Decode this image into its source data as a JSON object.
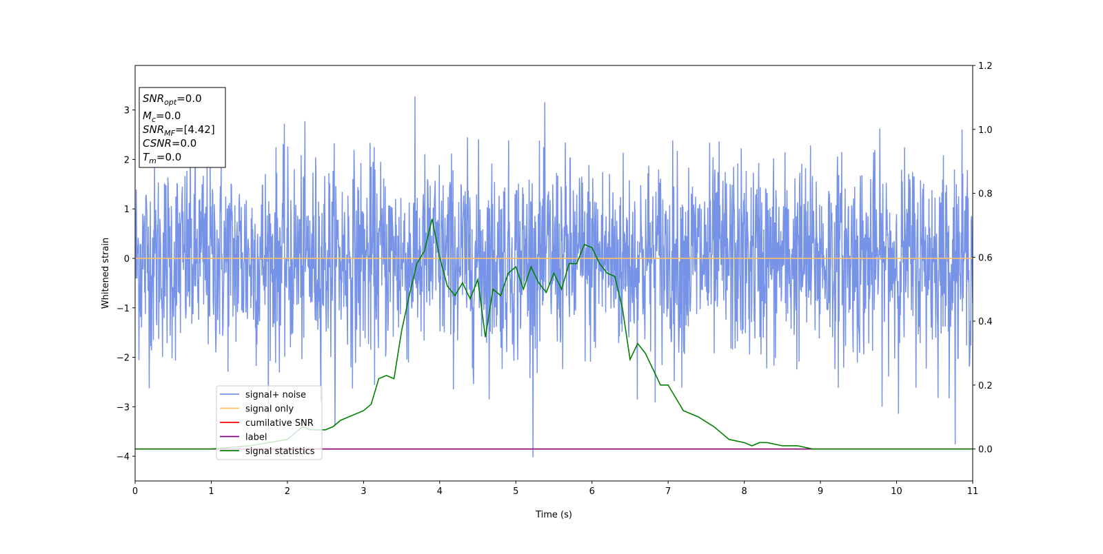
{
  "chart_data": {
    "type": "line",
    "xlabel": "Time (s)",
    "ylabel": "Whitened strain",
    "xlim": [
      0,
      11
    ],
    "ylim_left": [
      -4.5,
      3.9
    ],
    "ylim_right": [
      -0.1,
      1.2
    ],
    "x_ticks": [
      0,
      1,
      2,
      3,
      4,
      5,
      6,
      7,
      8,
      9,
      10,
      11
    ],
    "y_ticks_left": [
      -4,
      -3,
      -2,
      -1,
      0,
      1,
      2,
      3
    ],
    "y_ticks_right": [
      0.0,
      0.2,
      0.4,
      0.6,
      0.8,
      1.0,
      1.2
    ],
    "grid": false,
    "legend_placement": "lower-left",
    "info_box": {
      "lines": [
        {
          "main": "SNR",
          "sub": "opt",
          "value": "=0.0"
        },
        {
          "main": "M",
          "sub": "c",
          "value": "=0.0"
        },
        {
          "main": "SNR",
          "sub": "MF",
          "value": "=[4.42]"
        },
        {
          "main": "CSNR",
          "sub": "",
          "value": "=0.0"
        },
        {
          "main": "T",
          "sub": "m",
          "value": "=0.0"
        }
      ]
    },
    "series": [
      {
        "name": "signal+ noise",
        "color": "#6f8de6",
        "axis": "left",
        "kind": "noise",
        "sample_rate": 200,
        "std": 1.0
      },
      {
        "name": "signal only",
        "color": "#ffbf66",
        "axis": "left",
        "x": [
          0,
          11
        ],
        "y": [
          0,
          0
        ]
      },
      {
        "name": "cumilative SNR",
        "color": "#ff0000",
        "axis": "right",
        "x": [
          0,
          11
        ],
        "y": [
          0,
          0
        ]
      },
      {
        "name": "label",
        "color": "#800080",
        "axis": "right",
        "x": [
          0,
          11
        ],
        "y": [
          0,
          0
        ]
      },
      {
        "name": "signal statistics",
        "color": "#008000",
        "axis": "right",
        "x": [
          0,
          0.5,
          1,
          1.5,
          2.0,
          2.2,
          2.3,
          2.5,
          2.6,
          2.7,
          2.8,
          2.9,
          3.0,
          3.1,
          3.2,
          3.3,
          3.4,
          3.5,
          3.6,
          3.7,
          3.8,
          3.9,
          4.0,
          4.1,
          4.2,
          4.3,
          4.4,
          4.5,
          4.6,
          4.7,
          4.8,
          4.9,
          5.0,
          5.1,
          5.2,
          5.3,
          5.4,
          5.5,
          5.6,
          5.7,
          5.8,
          5.9,
          6.0,
          6.1,
          6.2,
          6.3,
          6.4,
          6.5,
          6.6,
          6.7,
          6.8,
          6.9,
          7.0,
          7.1,
          7.2,
          7.4,
          7.6,
          7.8,
          8.0,
          8.1,
          8.2,
          8.3,
          8.5,
          8.7,
          8.9,
          9.2,
          9.5,
          9.8,
          10.0,
          10.3,
          10.6,
          11.0
        ],
        "y": [
          0.0,
          0.0,
          0.0,
          0.01,
          0.03,
          0.07,
          0.06,
          0.06,
          0.07,
          0.09,
          0.1,
          0.11,
          0.12,
          0.14,
          0.22,
          0.23,
          0.22,
          0.37,
          0.48,
          0.58,
          0.62,
          0.72,
          0.6,
          0.51,
          0.48,
          0.52,
          0.47,
          0.53,
          0.35,
          0.5,
          0.48,
          0.55,
          0.57,
          0.5,
          0.57,
          0.52,
          0.49,
          0.55,
          0.5,
          0.58,
          0.58,
          0.64,
          0.63,
          0.58,
          0.55,
          0.54,
          0.44,
          0.28,
          0.33,
          0.3,
          0.25,
          0.2,
          0.2,
          0.16,
          0.12,
          0.1,
          0.07,
          0.03,
          0.02,
          0.01,
          0.02,
          0.02,
          0.01,
          0.01,
          0.0,
          0.0,
          0.0,
          0.0,
          0.0,
          0.0,
          0.0,
          0.0
        ]
      }
    ]
  }
}
